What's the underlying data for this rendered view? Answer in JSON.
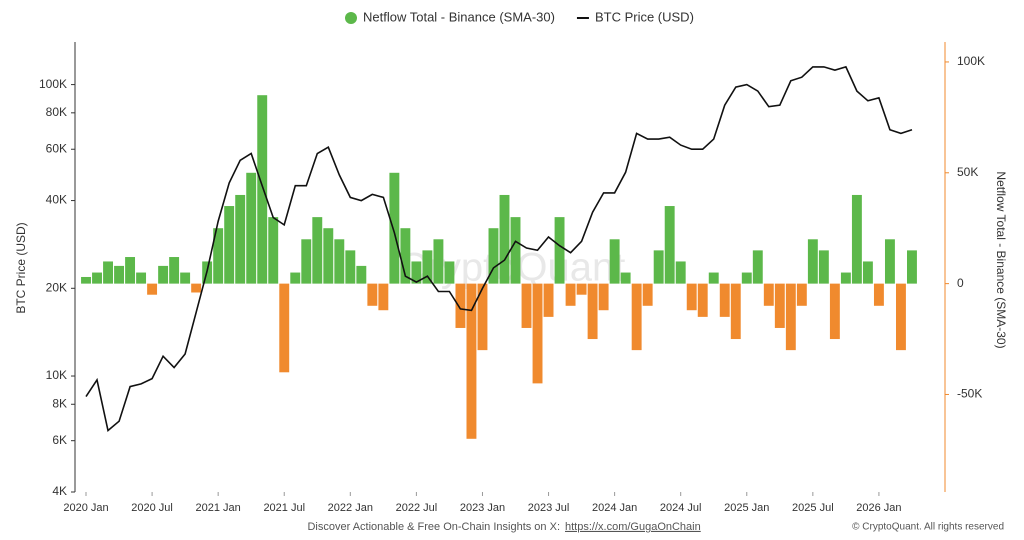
{
  "chart_data": {
    "type": "combo",
    "x": [
      "2020-01",
      "2020-02",
      "2020-03",
      "2020-04",
      "2020-05",
      "2020-06",
      "2020-07",
      "2020-08",
      "2020-09",
      "2020-10",
      "2020-11",
      "2020-12",
      "2021-01",
      "2021-02",
      "2021-03",
      "2021-04",
      "2021-05",
      "2021-06",
      "2021-07",
      "2021-08",
      "2021-09",
      "2021-10",
      "2021-11",
      "2021-12",
      "2022-01",
      "2022-02",
      "2022-03",
      "2022-04",
      "2022-05",
      "2022-06",
      "2022-07",
      "2022-08",
      "2022-09",
      "2022-10",
      "2022-11",
      "2022-12",
      "2023-01",
      "2023-02",
      "2023-03",
      "2023-04",
      "2023-05",
      "2023-06",
      "2023-07",
      "2023-08",
      "2023-09",
      "2023-10",
      "2023-11",
      "2023-12",
      "2024-01",
      "2024-02",
      "2024-03",
      "2024-04",
      "2024-05",
      "2024-06",
      "2024-07",
      "2024-08",
      "2024-09",
      "2024-10",
      "2024-11",
      "2024-12",
      "2025-01",
      "2025-02",
      "2025-03",
      "2025-04",
      "2025-05",
      "2025-06",
      "2025-07",
      "2025-08",
      "2025-09",
      "2025-10",
      "2025-11",
      "2025-12",
      "2026-01",
      "2026-02",
      "2026-03",
      "2026-04"
    ],
    "series": [
      {
        "name": "Netflow Total - Binance (SMA-30)",
        "type": "bar",
        "axis": "y2",
        "color": "#5cb84a",
        "negative_color": "#f08a2e",
        "values": [
          3000,
          5000,
          10000,
          8000,
          12000,
          5000,
          -5000,
          8000,
          12000,
          5000,
          -4000,
          10000,
          25000,
          35000,
          40000,
          50000,
          85000,
          30000,
          -40000,
          5000,
          20000,
          30000,
          25000,
          20000,
          15000,
          8000,
          -10000,
          -12000,
          50000,
          25000,
          10000,
          15000,
          20000,
          10000,
          -20000,
          -70000,
          -30000,
          25000,
          40000,
          30000,
          -20000,
          -45000,
          -15000,
          30000,
          -10000,
          -5000,
          -25000,
          -12000,
          20000,
          5000,
          -30000,
          -10000,
          15000,
          35000,
          10000,
          -12000,
          -15000,
          5000,
          -15000,
          -25000,
          5000,
          15000,
          -10000,
          -20000,
          -30000,
          -10000,
          20000,
          15000,
          -25000,
          5000,
          40000,
          10000,
          -10000,
          20000,
          -30000,
          15000
        ]
      },
      {
        "name": "BTC Price (USD)",
        "type": "line",
        "axis": "y",
        "color": "#111111",
        "values": [
          8500,
          9700,
          6500,
          7000,
          9200,
          9400,
          9800,
          11700,
          10700,
          11900,
          16500,
          23000,
          34000,
          46000,
          55000,
          58000,
          45000,
          35000,
          33000,
          45000,
          45000,
          58000,
          61000,
          49000,
          41000,
          40000,
          42000,
          41000,
          31000,
          22000,
          21000,
          22000,
          19500,
          19500,
          17000,
          16800,
          20000,
          23500,
          25000,
          29000,
          27500,
          27000,
          30000,
          28000,
          26500,
          29000,
          36500,
          42500,
          42500,
          50000,
          68000,
          65000,
          65000,
          66000,
          62000,
          60000,
          60000,
          65000,
          85000,
          98000,
          100000,
          95000,
          84000,
          85000,
          103000,
          106000,
          115000,
          115000,
          112000,
          115000,
          95000,
          88000,
          90000,
          70000,
          68000,
          70000
        ]
      }
    ],
    "xlim": [
      "2019-12",
      "2026-07"
    ],
    "xticks": [
      {
        "value": "2020-01",
        "label": "2020 Jan"
      },
      {
        "value": "2020-07",
        "label": "2020 Jul"
      },
      {
        "value": "2021-01",
        "label": "2021 Jan"
      },
      {
        "value": "2021-07",
        "label": "2021 Jul"
      },
      {
        "value": "2022-01",
        "label": "2022 Jan"
      },
      {
        "value": "2022-07",
        "label": "2022 Jul"
      },
      {
        "value": "2023-01",
        "label": "2023 Jan"
      },
      {
        "value": "2023-07",
        "label": "2023 Jul"
      },
      {
        "value": "2024-01",
        "label": "2024 Jan"
      },
      {
        "value": "2024-07",
        "label": "2024 Jul"
      },
      {
        "value": "2025-01",
        "label": "2025 Jan"
      },
      {
        "value": "2025-07",
        "label": "2025 Jul"
      },
      {
        "value": "2026-01",
        "label": "2026 Jan"
      }
    ],
    "ylabel": "BTC Price (USD)",
    "ylog": true,
    "ylim": [
      4000,
      140000
    ],
    "yticks": [
      {
        "value": 4000,
        "label": "4K"
      },
      {
        "value": 6000,
        "label": "6K"
      },
      {
        "value": 8000,
        "label": "8K"
      },
      {
        "value": 10000,
        "label": "10K"
      },
      {
        "value": 20000,
        "label": "20K"
      },
      {
        "value": 40000,
        "label": "40K"
      },
      {
        "value": 60000,
        "label": "60K"
      },
      {
        "value": 80000,
        "label": "80K"
      },
      {
        "value": 100000,
        "label": "100K"
      }
    ],
    "y2label": "Netflow Total - Binance (SMA-30)",
    "y2lim": [
      -94000,
      109000
    ],
    "y2ticks": [
      {
        "value": -50000,
        "label": "-50K"
      },
      0,
      {
        "value": 50000,
        "label": "50K"
      },
      {
        "value": 100000,
        "label": "100K"
      }
    ],
    "legend": "top",
    "watermark": "CryptoQuant",
    "footer": {
      "text": "Discover Actionable & Free On-Chain Insights on X:",
      "link": "https://x.com/GugaOnChain",
      "copyright": "© CryptoQuant. All rights reserved"
    }
  }
}
